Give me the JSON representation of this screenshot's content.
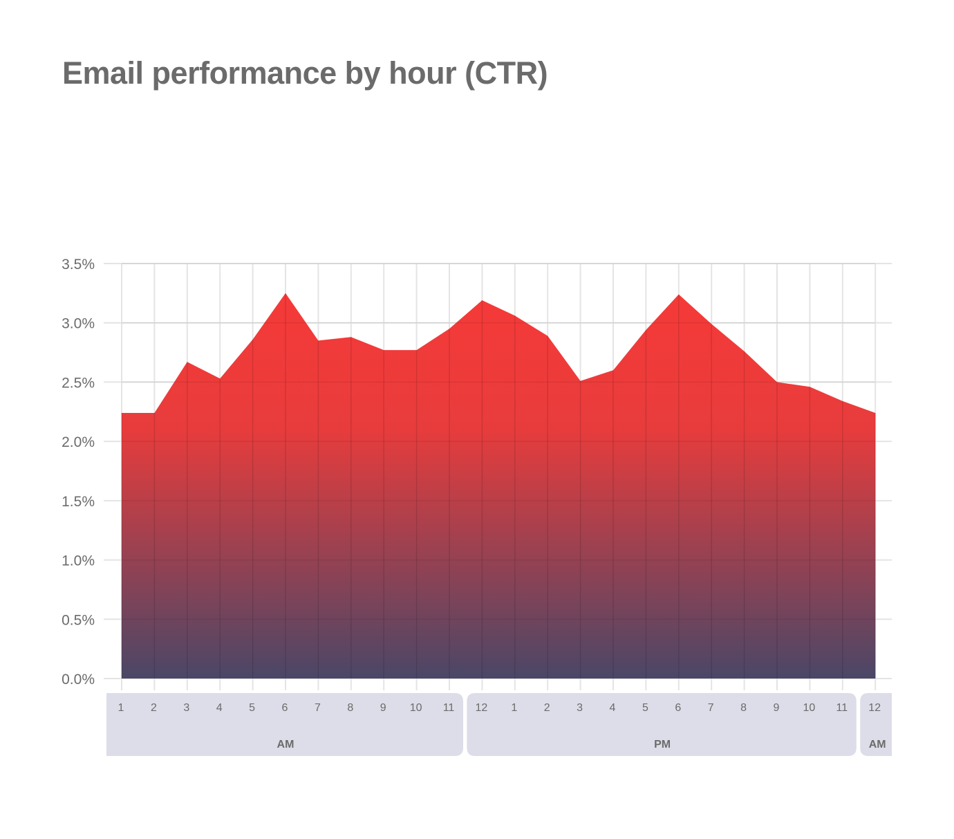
{
  "title": "Email performance by hour (CTR)",
  "chart_data": {
    "type": "area",
    "title": "Email performance by hour (CTR)",
    "xlabel": "",
    "ylabel": "",
    "ylim": [
      0,
      3.5
    ],
    "grid": true,
    "colors": {
      "gradient_top": "#f53a38",
      "gradient_mid": "#e83c3c",
      "gradient_bottom": "#4a4767",
      "grid": "#e4e4e4",
      "band": "#dcdde8",
      "text": "#6b6b6b"
    },
    "y_ticks": [
      "0.0%",
      "0.5%",
      "1.0%",
      "1.5%",
      "2.0%",
      "2.5%",
      "3.0%",
      "3.5%"
    ],
    "y_tick_values": [
      0,
      0.5,
      1.0,
      1.5,
      2.0,
      2.5,
      3.0,
      3.5
    ],
    "categories": [
      "1",
      "2",
      "3",
      "4",
      "5",
      "6",
      "7",
      "8",
      "9",
      "10",
      "11",
      "12",
      "1",
      "2",
      "3",
      "4",
      "5",
      "6",
      "7",
      "8",
      "9",
      "10",
      "11",
      "12"
    ],
    "values": [
      2.24,
      2.24,
      2.67,
      2.53,
      2.86,
      3.25,
      2.85,
      2.88,
      2.77,
      2.77,
      2.95,
      3.19,
      3.06,
      2.89,
      2.51,
      2.6,
      2.94,
      3.24,
      2.99,
      2.76,
      2.5,
      2.46,
      2.34,
      2.24
    ],
    "periods": [
      {
        "label": "AM",
        "start": 0,
        "end": 10
      },
      {
        "label": "PM",
        "start": 11,
        "end": 22
      },
      {
        "label": "AM",
        "start": 23,
        "end": 23
      }
    ]
  }
}
